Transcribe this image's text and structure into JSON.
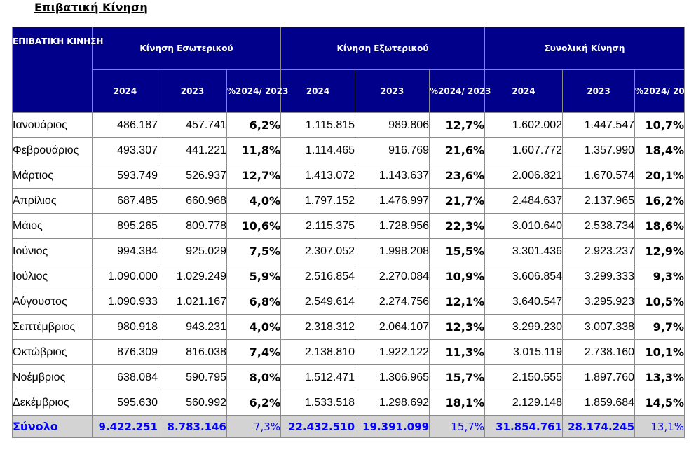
{
  "title": "Επιβατική Κίνηση",
  "header": {
    "row_label": "ΕΠΙΒΑΤΙΚΗ ΚΙΝΗΣΗ",
    "groups": [
      "Κίνηση Εσωτερικού",
      "Κίνηση Εξωτερικού",
      "Συνολική Κίνηση"
    ],
    "year_2024": "2024",
    "year_2023": "2023",
    "pct_label": "%2024/ 2023"
  },
  "rows": [
    {
      "month": "Ιανουάριος",
      "dom_2024": "486.187",
      "dom_2023": "457.741",
      "dom_pct": "6,2%",
      "int_2024": "1.115.815",
      "int_2023": "989.806",
      "int_pct": "12,7%",
      "tot_2024": "1.602.002",
      "tot_2023": "1.447.547",
      "tot_pct": "10,7%"
    },
    {
      "month": "Φεβρουάριος",
      "dom_2024": "493.307",
      "dom_2023": "441.221",
      "dom_pct": "11,8%",
      "int_2024": "1.114.465",
      "int_2023": "916.769",
      "int_pct": "21,6%",
      "tot_2024": "1.607.772",
      "tot_2023": "1.357.990",
      "tot_pct": "18,4%"
    },
    {
      "month": "Μάρτιος",
      "dom_2024": "593.749",
      "dom_2023": "526.937",
      "dom_pct": "12,7%",
      "int_2024": "1.413.072",
      "int_2023": "1.143.637",
      "int_pct": "23,6%",
      "tot_2024": "2.006.821",
      "tot_2023": "1.670.574",
      "tot_pct": "20,1%"
    },
    {
      "month": "Απρίλιος",
      "dom_2024": "687.485",
      "dom_2023": "660.968",
      "dom_pct": "4,0%",
      "int_2024": "1.797.152",
      "int_2023": "1.476.997",
      "int_pct": "21,7%",
      "tot_2024": "2.484.637",
      "tot_2023": "2.137.965",
      "tot_pct": "16,2%"
    },
    {
      "month": "Μάιος",
      "dom_2024": "895.265",
      "dom_2023": "809.778",
      "dom_pct": "10,6%",
      "int_2024": "2.115.375",
      "int_2023": "1.728.956",
      "int_pct": "22,3%",
      "tot_2024": "3.010.640",
      "tot_2023": "2.538.734",
      "tot_pct": "18,6%"
    },
    {
      "month": "Ιούνιος",
      "dom_2024": "994.384",
      "dom_2023": "925.029",
      "dom_pct": "7,5%",
      "int_2024": "2.307.052",
      "int_2023": "1.998.208",
      "int_pct": "15,5%",
      "tot_2024": "3.301.436",
      "tot_2023": "2.923.237",
      "tot_pct": "12,9%"
    },
    {
      "month": "Ιούλιος",
      "dom_2024": "1.090.000",
      "dom_2023": "1.029.249",
      "dom_pct": "5,9%",
      "int_2024": "2.516.854",
      "int_2023": "2.270.084",
      "int_pct": "10,9%",
      "tot_2024": "3.606.854",
      "tot_2023": "3.299.333",
      "tot_pct": "9,3%"
    },
    {
      "month": "Αύγουστος",
      "dom_2024": "1.090.933",
      "dom_2023": "1.021.167",
      "dom_pct": "6,8%",
      "int_2024": "2.549.614",
      "int_2023": "2.274.756",
      "int_pct": "12,1%",
      "tot_2024": "3.640.547",
      "tot_2023": "3.295.923",
      "tot_pct": "10,5%"
    },
    {
      "month": "Σεπτέμβριος",
      "dom_2024": "980.918",
      "dom_2023": "943.231",
      "dom_pct": "4,0%",
      "int_2024": "2.318.312",
      "int_2023": "2.064.107",
      "int_pct": "12,3%",
      "tot_2024": "3.299.230",
      "tot_2023": "3.007.338",
      "tot_pct": "9,7%"
    },
    {
      "month": "Οκτώβριος",
      "dom_2024": "876.309",
      "dom_2023": "816.038",
      "dom_pct": "7,4%",
      "int_2024": "2.138.810",
      "int_2023": "1.922.122",
      "int_pct": "11,3%",
      "tot_2024": "3.015.119",
      "tot_2023": "2.738.160",
      "tot_pct": "10,1%"
    },
    {
      "month": "Νοέμβριος",
      "dom_2024": "638.084",
      "dom_2023": "590.795",
      "dom_pct": "8,0%",
      "int_2024": "1.512.471",
      "int_2023": "1.306.965",
      "int_pct": "15,7%",
      "tot_2024": "2.150.555",
      "tot_2023": "1.897.760",
      "tot_pct": "13,3%"
    },
    {
      "month": "Δεκέμβριος",
      "dom_2024": "595.630",
      "dom_2023": "560.992",
      "dom_pct": "6,2%",
      "int_2024": "1.533.518",
      "int_2023": "1.298.692",
      "int_pct": "18,1%",
      "tot_2024": "2.129.148",
      "tot_2023": "1.859.684",
      "tot_pct": "14,5%"
    }
  ],
  "total": {
    "month": "Σύνολο",
    "dom_2024": "9.422.251",
    "dom_2023": "8.783.146",
    "dom_pct": "7,3%",
    "int_2024": "22.432.510",
    "int_2023": "19.391.099",
    "int_pct": "15,7%",
    "tot_2024": "31.854.761",
    "tot_2023": "28.174.245",
    "tot_pct": "13,1%"
  },
  "colors": {
    "header_bg": "#00008b",
    "header_text": "#ffffff",
    "total_bg": "#d3d3d3",
    "total_text": "#0000ff"
  }
}
